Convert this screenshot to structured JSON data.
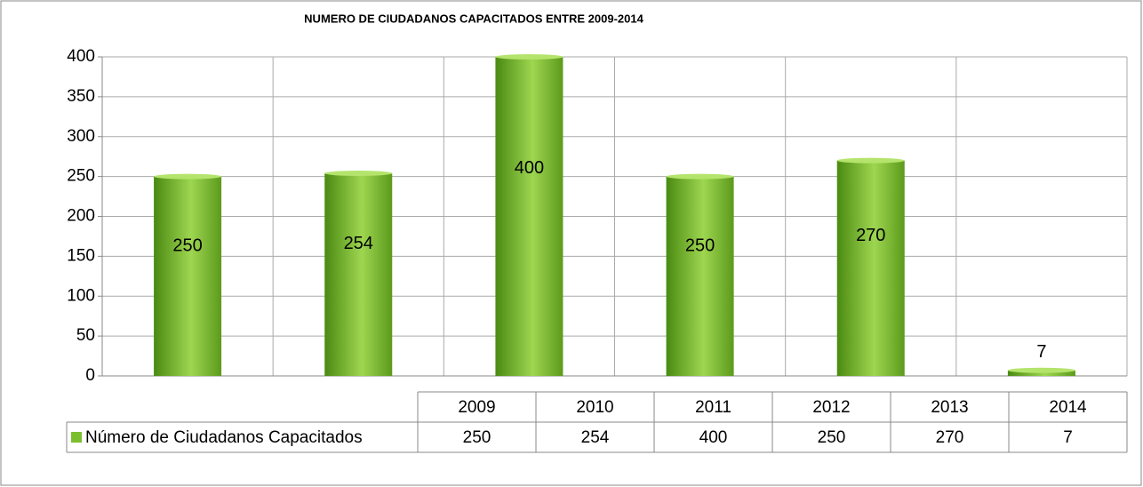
{
  "chart_data": {
    "type": "bar",
    "title": "NUMERO DE CIUDADANOS CAPACITADOS ENTRE 2009-2014",
    "categories": [
      "2009",
      "2010",
      "2011",
      "2012",
      "2013",
      "2014"
    ],
    "series": [
      {
        "name": "Número de Ciudadanos Capacitados",
        "color": "#7cbf2e",
        "values": [
          250,
          254,
          400,
          250,
          270,
          7
        ]
      }
    ],
    "ylim": [
      0,
      400
    ],
    "yticks": [
      0,
      50,
      100,
      150,
      200,
      250,
      300,
      350,
      400
    ],
    "grid": true
  }
}
